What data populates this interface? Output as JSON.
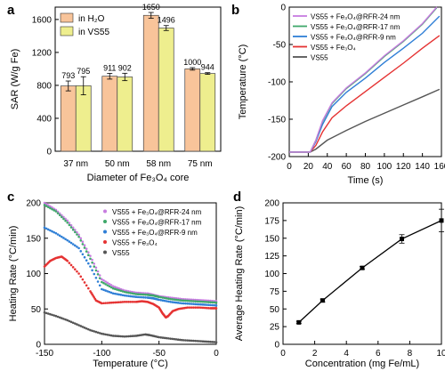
{
  "chart_data": [
    {
      "panel": "a",
      "type": "bar",
      "xlabel": "Diameter of Fe₃O₄ core",
      "ylabel": "SAR (W/g Fe)",
      "ylim": [
        0,
        1750
      ],
      "yticks": [
        0,
        400,
        800,
        1200,
        1600
      ],
      "categories": [
        "37 nm",
        "50 nm",
        "58 nm",
        "75 nm"
      ],
      "series": [
        {
          "name": "in H₂O",
          "color": "#f8c49a",
          "values": [
            793,
            911,
            1650,
            1000
          ],
          "errors": [
            60,
            35,
            35,
            15
          ]
        },
        {
          "name": "in VS55",
          "color": "#eeee8e",
          "values": [
            795,
            902,
            1496,
            944
          ],
          "errors": [
            110,
            45,
            30,
            10
          ]
        }
      ],
      "legend_position": "top-left"
    },
    {
      "panel": "b",
      "type": "line",
      "xlabel": "Time (s)",
      "ylabel": "Temperature (°C)",
      "xlim": [
        0,
        160
      ],
      "ylim": [
        -200,
        0
      ],
      "xticks": [
        0,
        20,
        40,
        60,
        80,
        100,
        120,
        140,
        160
      ],
      "yticks": [
        -200,
        -150,
        -100,
        -50,
        0
      ],
      "series": [
        {
          "name": "VS55 + Fe₃O₄@RFR-24 nm",
          "color": "#c77ce0",
          "points": [
            [
              0,
              -194
            ],
            [
              22,
              -194
            ],
            [
              28,
              -178
            ],
            [
              35,
              -152
            ],
            [
              45,
              -128
            ],
            [
              60,
              -108
            ],
            [
              80,
              -88
            ],
            [
              100,
              -65
            ],
            [
              120,
              -45
            ],
            [
              140,
              -22
            ],
            [
              155,
              0
            ]
          ]
        },
        {
          "name": "VS55 + Fe₃O₄@RFR-17 nm",
          "color": "#3fa86a",
          "points": [
            [
              0,
              -194
            ],
            [
              22,
              -194
            ],
            [
              28,
              -178
            ],
            [
              35,
              -153
            ],
            [
              45,
              -129
            ],
            [
              60,
              -109
            ],
            [
              80,
              -89
            ],
            [
              100,
              -66
            ],
            [
              120,
              -46
            ],
            [
              140,
              -23
            ],
            [
              155,
              -1
            ]
          ]
        },
        {
          "name": "VS55 + Fe₃O₄@RFR-9 nm",
          "color": "#2f7fd6",
          "points": [
            [
              0,
              -194
            ],
            [
              22,
              -194
            ],
            [
              28,
              -180
            ],
            [
              35,
              -157
            ],
            [
              45,
              -133
            ],
            [
              60,
              -114
            ],
            [
              80,
              -95
            ],
            [
              100,
              -74
            ],
            [
              120,
              -55
            ],
            [
              140,
              -35
            ],
            [
              158,
              -12
            ]
          ]
        },
        {
          "name": "VS55 + Fe₃O₄",
          "color": "#e53333",
          "points": [
            [
              0,
              -194
            ],
            [
              22,
              -194
            ],
            [
              28,
              -185
            ],
            [
              35,
              -167
            ],
            [
              45,
              -148
            ],
            [
              60,
              -132
            ],
            [
              80,
              -113
            ],
            [
              100,
              -94
            ],
            [
              120,
              -75
            ],
            [
              140,
              -55
            ],
            [
              158,
              -38
            ]
          ]
        },
        {
          "name": "VS55",
          "color": "#555555",
          "points": [
            [
              0,
              -194
            ],
            [
              22,
              -194
            ],
            [
              28,
              -190
            ],
            [
              40,
              -178
            ],
            [
              60,
              -165
            ],
            [
              80,
              -153
            ],
            [
              100,
              -142
            ],
            [
              120,
              -131
            ],
            [
              140,
              -120
            ],
            [
              158,
              -110
            ]
          ]
        }
      ],
      "legend_position": "top-left"
    },
    {
      "panel": "c",
      "type": "scatter",
      "xlabel": "Temperature (°C)",
      "ylabel": "Heating Rate (°C/min)",
      "xlim": [
        -150,
        0
      ],
      "ylim": [
        0,
        200
      ],
      "xticks": [
        -150,
        -100,
        -50,
        0
      ],
      "yticks": [
        0,
        50,
        100,
        150,
        200
      ],
      "series": [
        {
          "name": "VS55 + Fe₃O₄@RFR-24 nm",
          "color": "#c77ce0",
          "points": [
            [
              -150,
              200
            ],
            [
              -140,
              190
            ],
            [
              -130,
              175
            ],
            [
              -120,
              155
            ],
            [
              -110,
              125
            ],
            [
              -100,
              92
            ],
            [
              -90,
              82
            ],
            [
              -80,
              76
            ],
            [
              -70,
              73
            ],
            [
              -60,
              72
            ],
            [
              -55,
              70
            ],
            [
              -50,
              68
            ],
            [
              -40,
              66
            ],
            [
              -30,
              64
            ],
            [
              -20,
              63
            ],
            [
              -10,
              62
            ],
            [
              0,
              61
            ]
          ]
        },
        {
          "name": "VS55 + Fe₃O₄@RFR-17 nm",
          "color": "#3fa86a",
          "points": [
            [
              -150,
              197
            ],
            [
              -140,
              188
            ],
            [
              -130,
              172
            ],
            [
              -120,
              152
            ],
            [
              -110,
              121
            ],
            [
              -100,
              88
            ],
            [
              -90,
              79
            ],
            [
              -80,
              74
            ],
            [
              -70,
              71
            ],
            [
              -60,
              70
            ],
            [
              -55,
              69
            ],
            [
              -50,
              67
            ],
            [
              -40,
              64
            ],
            [
              -30,
              62
            ],
            [
              -20,
              61
            ],
            [
              -10,
              60
            ],
            [
              0,
              59
            ]
          ]
        },
        {
          "name": "VS55 + Fe₃O₄@RFR-9 nm",
          "color": "#2f7fd6",
          "points": [
            [
              -150,
              165
            ],
            [
              -140,
              157
            ],
            [
              -130,
              147
            ],
            [
              -120,
              136
            ],
            [
              -110,
              110
            ],
            [
              -100,
              78
            ],
            [
              -90,
              72
            ],
            [
              -80,
              69
            ],
            [
              -70,
              67
            ],
            [
              -60,
              66
            ],
            [
              -55,
              65
            ],
            [
              -50,
              63
            ],
            [
              -40,
              60
            ],
            [
              -30,
              58
            ],
            [
              -20,
              57
            ],
            [
              -10,
              56
            ],
            [
              0,
              55
            ]
          ]
        },
        {
          "name": "VS55 + Fe₃O₄",
          "color": "#e53333",
          "points": [
            [
              -150,
              110
            ],
            [
              -145,
              118
            ],
            [
              -140,
              122
            ],
            [
              -135,
              124
            ],
            [
              -130,
              118
            ],
            [
              -120,
              100
            ],
            [
              -110,
              75
            ],
            [
              -105,
              62
            ],
            [
              -100,
              58
            ],
            [
              -90,
              59
            ],
            [
              -80,
              60
            ],
            [
              -70,
              60
            ],
            [
              -65,
              61
            ],
            [
              -60,
              60
            ],
            [
              -55,
              57
            ],
            [
              -50,
              52
            ],
            [
              -47,
              44
            ],
            [
              -44,
              38
            ],
            [
              -42,
              40
            ],
            [
              -38,
              47
            ],
            [
              -33,
              50
            ],
            [
              -25,
              52
            ],
            [
              -15,
              52
            ],
            [
              -5,
              51
            ],
            [
              0,
              51
            ]
          ]
        },
        {
          "name": "VS55",
          "color": "#555555",
          "points": [
            [
              -150,
              45
            ],
            [
              -140,
              40
            ],
            [
              -130,
              34
            ],
            [
              -120,
              27
            ],
            [
              -110,
              20
            ],
            [
              -100,
              15
            ],
            [
              -90,
              12
            ],
            [
              -80,
              11
            ],
            [
              -70,
              12
            ],
            [
              -62,
              14
            ],
            [
              -58,
              13
            ],
            [
              -50,
              10
            ],
            [
              -40,
              8
            ],
            [
              -30,
              6
            ],
            [
              -20,
              5
            ],
            [
              -10,
              4
            ],
            [
              0,
              3
            ]
          ]
        }
      ],
      "legend_position": "top-right"
    },
    {
      "panel": "d",
      "type": "line",
      "xlabel": "Concentration (mg Fe/mL)",
      "ylabel": "Average Heating Rate (°C/min)",
      "xlim": [
        0,
        10
      ],
      "ylim": [
        0,
        200
      ],
      "xticks": [
        0,
        2,
        4,
        6,
        8,
        10
      ],
      "yticks": [
        0,
        25,
        50,
        75,
        100,
        125,
        150,
        175,
        200
      ],
      "series": [
        {
          "name": "",
          "color": "#000000",
          "x": [
            1,
            2.5,
            5,
            7.5,
            10
          ],
          "y": [
            31,
            62,
            108,
            149,
            175
          ],
          "errors": [
            1.5,
            2,
            2,
            6,
            16
          ]
        }
      ]
    }
  ]
}
